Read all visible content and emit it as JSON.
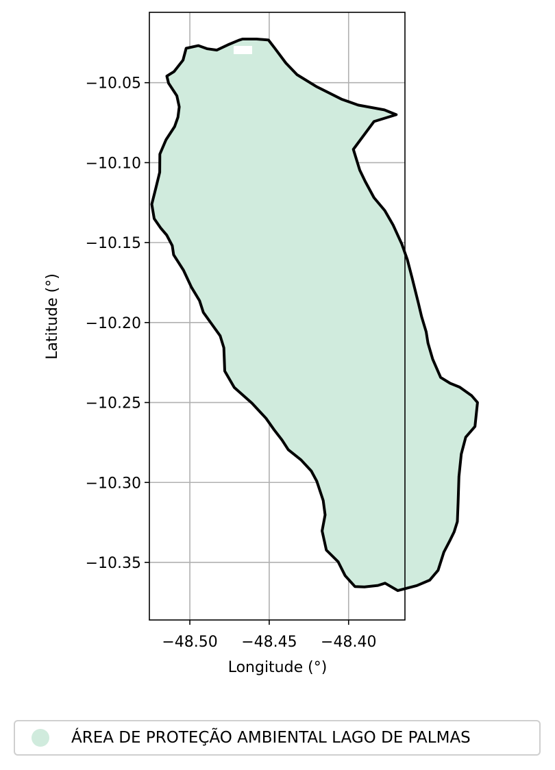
{
  "chart_data": {
    "type": "map",
    "xlabel": "Longitude (°)",
    "ylabel": "Latitude (°)",
    "xlim": [
      -48.5255,
      -48.3645
    ],
    "ylim": [
      -10.386,
      -10.006
    ],
    "grid": true,
    "xticks": [
      {
        "value": -48.5,
        "label": "−48.50"
      },
      {
        "value": -48.45,
        "label": "−48.45"
      },
      {
        "value": -48.4,
        "label": "−48.40"
      }
    ],
    "yticks": [
      {
        "value": -10.05,
        "label": "−10.05"
      },
      {
        "value": -10.1,
        "label": "−10.10"
      },
      {
        "value": -10.15,
        "label": "−10.15"
      },
      {
        "value": -10.2,
        "label": "−10.20"
      },
      {
        "value": -10.25,
        "label": "−10.25"
      },
      {
        "value": -10.3,
        "label": "−10.30"
      },
      {
        "value": -10.35,
        "label": "−10.35"
      }
    ],
    "polygon": {
      "name": "ÁREA DE PROTEÇÃO AMBIENTAL LAGO DE PALMAS",
      "fill_color": "#d0ebdd",
      "edge_color": "#000000",
      "coordinates": [
        [
          -48.4668,
          -10.0227
        ],
        [
          -48.458,
          -10.0227
        ],
        [
          -48.4505,
          -10.0233
        ],
        [
          -48.4465,
          -10.0284
        ],
        [
          -48.4395,
          -10.0377
        ],
        [
          -48.4325,
          -10.045
        ],
        [
          -48.4205,
          -10.0523
        ],
        [
          -48.4045,
          -10.0603
        ],
        [
          -48.394,
          -10.064
        ],
        [
          -48.3775,
          -10.067
        ],
        [
          -48.37,
          -10.07
        ],
        [
          -48.384,
          -10.0743
        ],
        [
          -48.397,
          -10.0917
        ],
        [
          -48.393,
          -10.1046
        ],
        [
          -48.3895,
          -10.1118
        ],
        [
          -48.384,
          -10.1219
        ],
        [
          -48.3772,
          -10.13
        ],
        [
          -48.372,
          -10.1389
        ],
        [
          -48.3665,
          -10.1509
        ],
        [
          -48.363,
          -10.1606
        ],
        [
          -48.36,
          -10.172
        ],
        [
          -48.356,
          -10.188
        ],
        [
          -48.354,
          -10.1963
        ],
        [
          -48.3511,
          -10.2058
        ],
        [
          -48.35,
          -10.2128
        ],
        [
          -48.347,
          -10.2229
        ],
        [
          -48.342,
          -10.2343
        ],
        [
          -48.336,
          -10.238
        ],
        [
          -48.33,
          -10.2404
        ],
        [
          -48.3225,
          -10.2457
        ],
        [
          -48.3188,
          -10.25
        ],
        [
          -48.3204,
          -10.265
        ],
        [
          -48.3262,
          -10.2717
        ],
        [
          -48.329,
          -10.2823
        ],
        [
          -48.3305,
          -10.2963
        ],
        [
          -48.331,
          -10.3124
        ],
        [
          -48.3315,
          -10.3245
        ],
        [
          -48.3335,
          -10.3309
        ],
        [
          -48.336,
          -10.336
        ],
        [
          -48.34,
          -10.3436
        ],
        [
          -48.3436,
          -10.3549
        ],
        [
          -48.3489,
          -10.3611
        ],
        [
          -48.357,
          -10.3645
        ],
        [
          -48.369,
          -10.3676
        ],
        [
          -48.377,
          -10.363
        ],
        [
          -48.3815,
          -10.3644
        ],
        [
          -48.39,
          -10.3653
        ],
        [
          -48.396,
          -10.3651
        ],
        [
          -48.4022,
          -10.3583
        ],
        [
          -48.4066,
          -10.3496
        ],
        [
          -48.414,
          -10.3423
        ],
        [
          -48.4167,
          -10.3303
        ],
        [
          -48.4148,
          -10.3203
        ],
        [
          -48.416,
          -10.3113
        ],
        [
          -48.42,
          -10.2993
        ],
        [
          -48.4235,
          -10.2928
        ],
        [
          -48.43,
          -10.2859
        ],
        [
          -48.438,
          -10.2795
        ],
        [
          -48.442,
          -10.2734
        ],
        [
          -48.447,
          -10.267
        ],
        [
          -48.452,
          -10.2599
        ],
        [
          -48.4609,
          -10.2504
        ],
        [
          -48.472,
          -10.2406
        ],
        [
          -48.478,
          -10.2303
        ],
        [
          -48.4786,
          -10.2158
        ],
        [
          -48.4809,
          -10.2083
        ],
        [
          -48.4864,
          -10.2007
        ],
        [
          -48.4915,
          -10.1937
        ],
        [
          -48.4939,
          -10.1863
        ],
        [
          -48.499,
          -10.1779
        ],
        [
          -48.504,
          -10.1673
        ],
        [
          -48.5102,
          -10.1576
        ],
        [
          -48.5111,
          -10.1519
        ],
        [
          -48.5146,
          -10.1453
        ],
        [
          -48.5183,
          -10.141
        ],
        [
          -48.5225,
          -10.135
        ],
        [
          -48.524,
          -10.126
        ],
        [
          -48.5214,
          -10.1158
        ],
        [
          -48.519,
          -10.106
        ],
        [
          -48.5189,
          -10.0947
        ],
        [
          -48.515,
          -10.0857
        ],
        [
          -48.5096,
          -10.0775
        ],
        [
          -48.5075,
          -10.0716
        ],
        [
          -48.5067,
          -10.0651
        ],
        [
          -48.5082,
          -10.0582
        ],
        [
          -48.5134,
          -10.0503
        ],
        [
          -48.5145,
          -10.0459
        ],
        [
          -48.5099,
          -10.043
        ],
        [
          -48.5043,
          -10.0359
        ],
        [
          -48.5023,
          -10.0285
        ],
        [
          -48.4946,
          -10.0268
        ],
        [
          -48.489,
          -10.0288
        ],
        [
          -48.483,
          -10.0296
        ],
        [
          -48.476,
          -10.0263
        ],
        [
          -48.4692,
          -10.0235
        ]
      ]
    }
  },
  "legend": {
    "label": "ÁREA DE PROTEÇÃO AMBIENTAL LAGO DE PALMAS",
    "marker_color": "#d0ebdd"
  }
}
